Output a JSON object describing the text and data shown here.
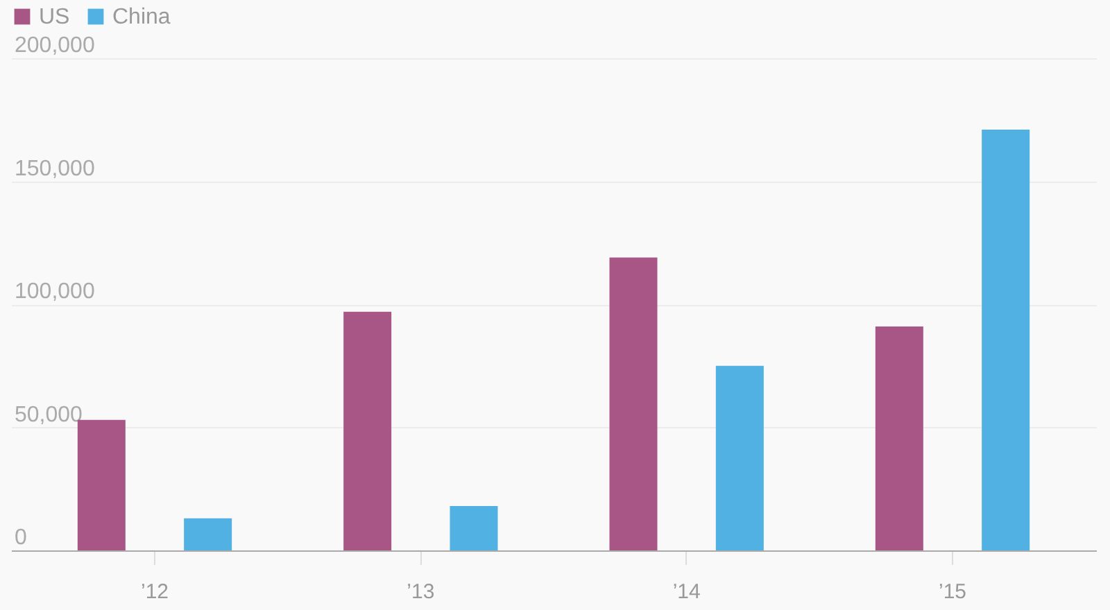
{
  "chart_data": {
    "type": "bar",
    "categories": [
      "’12",
      "’13",
      "’14",
      "’15"
    ],
    "series": [
      {
        "name": "US",
        "color": "#a85686",
        "values": [
          53000,
          97000,
          119000,
          91000
        ]
      },
      {
        "name": "China",
        "color": "#52b1e3",
        "values": [
          13000,
          18000,
          75000,
          171000
        ]
      }
    ],
    "ylim": [
      0,
      200000
    ],
    "yticks": [
      0,
      {
        "value": 50000,
        "label": "50,000"
      },
      {
        "value": 100000,
        "label": "100,000"
      },
      {
        "value": 150000,
        "label": "150,000"
      },
      {
        "value": 200000,
        "label": "200,000"
      }
    ],
    "grid": "y",
    "legend": "top left"
  }
}
